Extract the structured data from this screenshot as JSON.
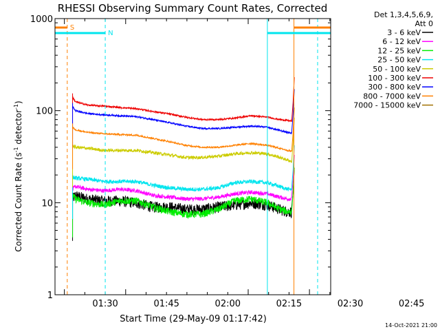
{
  "chart_data": {
    "type": "line",
    "title": "RHESSI Observing Summary Count Rates, Corrected",
    "xlabel": "Start Time (29-May-09 01:17:42)",
    "ylabel": "Corrected Count Rate (s",
    "ylabel_sup1": "-1",
    "ylabel_mid": " detector",
    "ylabel_sup2": "-1",
    "ylabel_end": ")",
    "yscale": "log",
    "ylim": [
      1,
      1000
    ],
    "y_tick_labels": [
      "1",
      "10",
      "100",
      "1000"
    ],
    "xlim_minutes_after_0117": [
      0,
      67.5
    ],
    "x_tick_labels": [
      "01:30",
      "01:45",
      "02:00",
      "02:15",
      "02:30",
      "02:45"
    ],
    "legend_header": [
      "Det 1,3,4,5,6,9,",
      "Att 0"
    ],
    "legend_position": "right",
    "date_stamp": "14-Oct-2021 21:00",
    "flags": [
      {
        "label": "S",
        "color": "#ff8000",
        "intervals": [
          [
            0.0,
            3.0
          ],
          [
            58.5,
            67.5
          ]
        ]
      },
      {
        "label": "N",
        "color": "#00e5ee",
        "intervals": [
          [
            0.0,
            12.3
          ],
          [
            52.0,
            67.5
          ]
        ]
      }
    ],
    "markers": [
      {
        "flag": "S",
        "time_min": 3.0,
        "style": "dashed",
        "color": "#ff8000"
      },
      {
        "flag": "N",
        "time_min": 12.3,
        "style": "dashed",
        "color": "#00e5ee"
      },
      {
        "flag": "N",
        "time_min": 52.0,
        "style": "solid",
        "color": "#00e5ee"
      },
      {
        "flag": "S",
        "time_min": 58.5,
        "style": "solid",
        "color": "#ff8000"
      },
      {
        "flag": "N",
        "time_min": 64.3,
        "style": "dashed",
        "color": "#00e5ee"
      }
    ],
    "x_sample_minutes": [
      4.3,
      5,
      8,
      12,
      16,
      20,
      24,
      28,
      32,
      36,
      40,
      44,
      48,
      52,
      55,
      57,
      58
    ],
    "series": [
      {
        "name": "3 - 6 keV",
        "color": "#000000",
        "noise": 0.14,
        "values": [
          11,
          12,
          11,
          10.5,
          10.5,
          10,
          9,
          9,
          8.5,
          8.5,
          9,
          9.5,
          10,
          9.5,
          8.5,
          8,
          8
        ]
      },
      {
        "name": "6 - 12 keV",
        "color": "#ff00ff",
        "noise": 0.05,
        "values": [
          14,
          15,
          14,
          13.5,
          14,
          13.5,
          12,
          11.5,
          11,
          11,
          11.5,
          12.5,
          13,
          12.5,
          11.5,
          11,
          11
        ]
      },
      {
        "name": "12 - 25 keV",
        "color": "#00ee00",
        "noise": 0.09,
        "values": [
          12,
          11,
          10,
          9.5,
          10.5,
          10.5,
          9,
          8,
          7.5,
          7.5,
          8.5,
          10.5,
          11,
          10,
          8.5,
          8,
          8
        ]
      },
      {
        "name": "25 - 50 keV",
        "color": "#00e5ee",
        "noise": 0.05,
        "values": [
          19,
          18.5,
          18,
          17,
          17,
          17,
          15.5,
          14.5,
          14,
          14,
          14.5,
          16.5,
          17,
          16.5,
          15,
          14,
          14
        ]
      },
      {
        "name": "50 - 100 keV",
        "color": "#cccc00",
        "noise": 0.04,
        "values": [
          42,
          40,
          39,
          37,
          37,
          37,
          35,
          33,
          31,
          31,
          32,
          34,
          35,
          34,
          31,
          29,
          28
        ]
      },
      {
        "name": "100 - 300 keV",
        "color": "#ee0000",
        "noise": 0.02,
        "values": [
          140,
          125,
          115,
          112,
          108,
          105,
          98,
          92,
          85,
          80,
          80,
          83,
          88,
          85,
          80,
          78,
          77
        ]
      },
      {
        "name": "300 - 800 keV",
        "color": "#0000ff",
        "noise": 0.02,
        "values": [
          110,
          100,
          93,
          90,
          88,
          86,
          80,
          74,
          68,
          64,
          64,
          66,
          68,
          66,
          61,
          58,
          57
        ]
      },
      {
        "name": "800 - 7000 keV",
        "color": "#ff8000",
        "noise": 0.02,
        "values": [
          66,
          62,
          58,
          56,
          55,
          54,
          50,
          46,
          42,
          40,
          40,
          42,
          44,
          42,
          39,
          37,
          36
        ]
      },
      {
        "name": "7000 - 15000 keV",
        "color": "#a07000",
        "noise": 0.0,
        "values": []
      }
    ]
  }
}
